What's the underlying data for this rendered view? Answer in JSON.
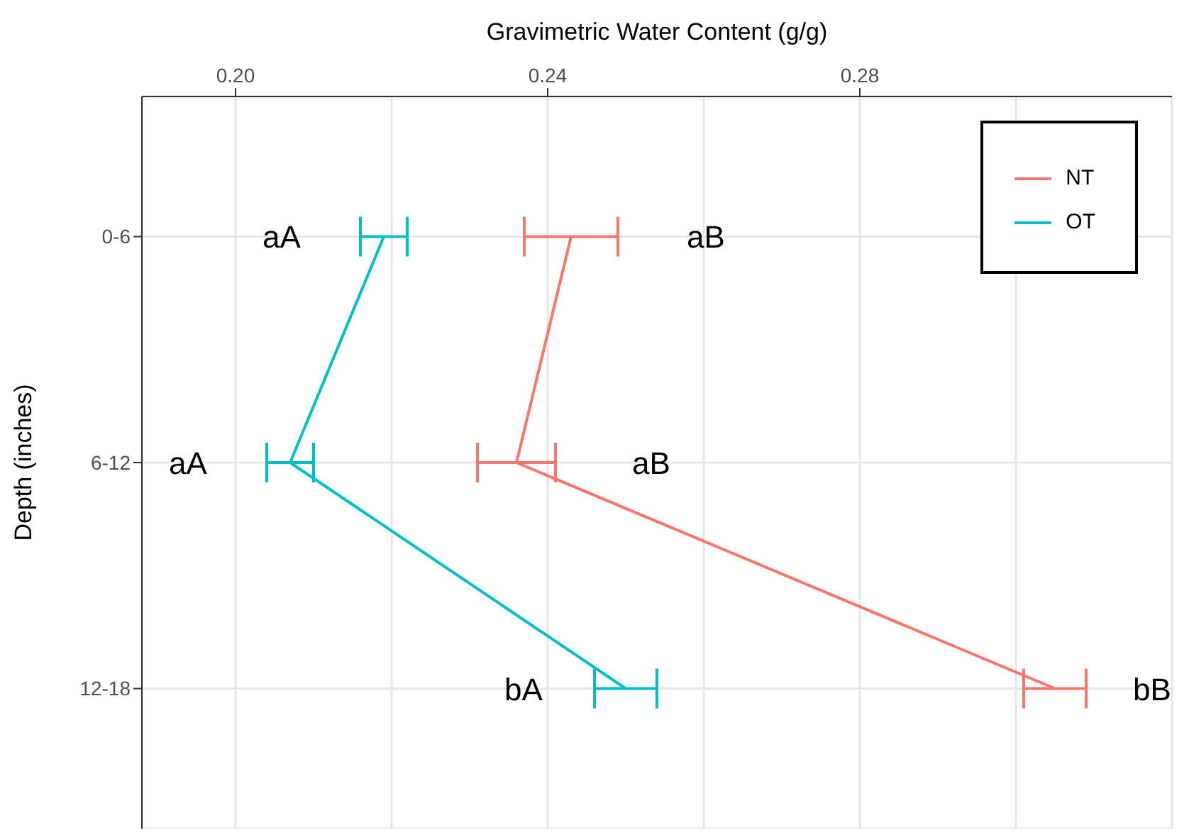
{
  "chart_data": {
    "type": "line",
    "xlabel": "Gravimetric Water Content (g/g)",
    "ylabel": "Depth (inches)",
    "categories": [
      "0-6",
      "6-12",
      "12-18"
    ],
    "orientation": "horizontal",
    "series": [
      {
        "name": "NT",
        "color": "#f8766d",
        "values": [
          0.243,
          0.236,
          0.305
        ],
        "errors": [
          0.006,
          0.005,
          0.004
        ]
      },
      {
        "name": "OT",
        "color": "#00bfc4",
        "values": [
          0.219,
          0.207,
          0.25
        ],
        "errors": [
          0.003,
          0.003,
          0.004
        ]
      }
    ],
    "xlim": [
      0.188,
      0.32
    ],
    "xticks": [
      {
        "value": 0.2,
        "label": "0.20"
      },
      {
        "value": 0.22,
        "label": null
      },
      {
        "value": 0.24,
        "label": "0.24"
      },
      {
        "value": 0.26,
        "label": null
      },
      {
        "value": 0.28,
        "label": "0.28"
      },
      {
        "value": 0.3,
        "label": null
      }
    ],
    "annotations": [
      "aA",
      "aB",
      "aA",
      "aB",
      "bA",
      "bB"
    ],
    "grid": true,
    "legend": "top right",
    "marker": "none",
    "line_style": "solid"
  }
}
